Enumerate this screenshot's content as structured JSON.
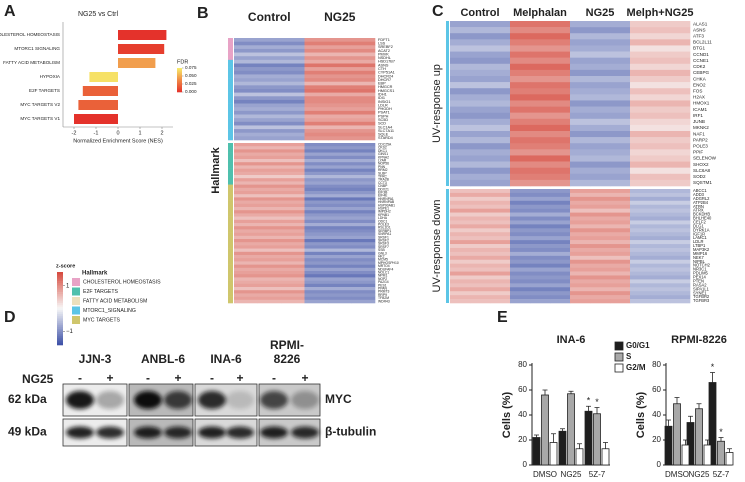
{
  "panel_labels": [
    "A",
    "B",
    "C",
    "D",
    "E"
  ],
  "chart_data": [
    {
      "type": "hbar",
      "title": "NG25 vs Ctrl",
      "x_label": "Normalized Enrichment Score (NES)",
      "categories": [
        "CHOLESTEROL HOMEOSTASIS",
        "MTORC1 SIGNALING",
        "FATTY ACID METABOLISM",
        "HYPOXIA",
        "E2F TARGETS",
        "MYC TARGETS V2",
        "MYC TARGETS V1"
      ],
      "values": [
        2.2,
        2.1,
        1.7,
        -1.3,
        -1.6,
        -1.8,
        -2.0
      ],
      "fdr": [
        0.0,
        0.005,
        0.045,
        0.07,
        0.02,
        0.02,
        0.0
      ],
      "xlim": [
        -2.5,
        2.5
      ],
      "xticks": [
        -2,
        -1,
        0,
        1,
        2
      ],
      "colorbar": {
        "title": "FDR",
        "clim": [
          0,
          0.075
        ],
        "colors": [
          "#e4322b",
          "#f08a45",
          "#f7ee6b"
        ],
        "ticks": [
          0.075,
          {
            "value": 0.05,
            "label": "0.050"
          },
          0.025,
          {
            "value": 0,
            "label": "0.000"
          }
        ]
      }
    },
    {
      "type": "bar",
      "title": "INA-6",
      "y_label": "Cells (%)",
      "categories": [
        "DMSO",
        "NG25",
        "5Z-7"
      ],
      "ylim": [
        0,
        80
      ],
      "yticks": [
        0,
        20,
        40,
        60,
        80
      ],
      "series": [
        {
          "name": "G0/G1",
          "color": "#1e1e1e",
          "values": [
            22,
            27,
            43
          ],
          "errors": [
            2,
            2,
            4
          ],
          "significance": [
            null,
            null,
            "*"
          ]
        },
        {
          "name": "S",
          "color": "#a8a8a8",
          "values": [
            56,
            57,
            41
          ],
          "errors": [
            4,
            2,
            5
          ],
          "significance": [
            null,
            null,
            "*"
          ]
        },
        {
          "name": "G2/M",
          "color": "#ffffff",
          "values": [
            18,
            13,
            13
          ],
          "errors": [
            7,
            4,
            5
          ],
          "significance": [
            null,
            null,
            null
          ]
        }
      ]
    },
    {
      "type": "bar",
      "title": "RPMI-8226",
      "y_label": "Cells (%)",
      "categories": [
        "DMSO",
        "NG25",
        "5Z-7"
      ],
      "ylim": [
        0,
        80
      ],
      "yticks": [
        0,
        20,
        40,
        60,
        80
      ],
      "series": [
        {
          "color": "#1e1e1e",
          "values": [
            31,
            34,
            66
          ],
          "errors": [
            5,
            5,
            8
          ],
          "significance": [
            null,
            null,
            "*"
          ]
        },
        {
          "color": "#a8a8a8",
          "values": [
            49,
            45,
            19
          ],
          "errors": [
            5,
            4,
            3
          ],
          "significance": [
            null,
            null,
            "*"
          ]
        },
        {
          "color": "#ffffff",
          "values": [
            16,
            16,
            10
          ],
          "errors": [
            4,
            4,
            3
          ],
          "significance": [
            null,
            null,
            null
          ]
        }
      ]
    }
  ],
  "heatmap_legend": {
    "title": "z-score",
    "zlim": [
      -1.6,
      1.6
    ],
    "ticks": [
      1,
      {
        "value": -1,
        "label": "−1"
      }
    ]
  },
  "heatmap_b": {
    "columns": [
      "Control",
      "NG25"
    ],
    "replicates": 3,
    "row_label": "Hallmark",
    "hallmarks": [
      {
        "name": "CHOLESTEROL HOMEOSTASIS",
        "color": "#e8a3c6"
      },
      {
        "name": "E2F TARGETS",
        "color": "#4fc0ad"
      },
      {
        "name": "FATTY ACID METABOLISM",
        "color": "#ece0bd"
      },
      {
        "name": "MTORC1_SIGNALING",
        "color": "#5cc5e6"
      },
      {
        "name": "MYC TARGETS",
        "color": "#cfc66c"
      }
    ],
    "blocks": [
      {
        "genes": [
          "FDFT1",
          "LSS",
          "SREBF2",
          "ACAT2",
          "PMVK",
          "NSDHL",
          "HSD17B7",
          "ASNS",
          "CTH",
          "CYP51A1",
          "DHCR24",
          "DHCR7",
          "EBP",
          "HMGCR",
          "HMGCS1",
          "IDH1",
          "IDI1",
          "INSIG1",
          "LDLR",
          "PHGDH",
          "PSAT1",
          "PSPH",
          "SC5D",
          "SCD",
          "SLC1A4",
          "SLC7A11",
          "SQLE",
          "STARD4"
        ],
        "hallmark": [
          0,
          0,
          0,
          0,
          0,
          0,
          3,
          3,
          3,
          3,
          3,
          3,
          3,
          3,
          3,
          3,
          3,
          3,
          3,
          3,
          3,
          3,
          3,
          3,
          3,
          3,
          3,
          3
        ],
        "values": [
          [
            -0.8,
            0.9
          ],
          [
            -1.0,
            1.1
          ],
          [
            -0.7,
            0.8
          ],
          [
            -0.9,
            1.0
          ],
          [
            -0.5,
            0.6
          ],
          [
            -0.8,
            0.9
          ],
          [
            -0.6,
            0.7
          ],
          [
            -1.1,
            1.2
          ],
          [
            -0.9,
            0.8
          ],
          [
            -1.0,
            1.1
          ],
          [
            -0.7,
            0.9
          ],
          [
            -0.8,
            1.0
          ],
          [
            -0.6,
            0.6
          ],
          [
            -0.9,
            1.1
          ],
          [
            -1.0,
            1.2
          ],
          [
            -0.5,
            0.7
          ],
          [
            -0.9,
            1.0
          ],
          [
            -1.1,
            1.0
          ],
          [
            -0.8,
            0.9
          ],
          [
            -0.7,
            0.8
          ],
          [
            -0.9,
            1.1
          ],
          [
            -0.6,
            0.7
          ],
          [
            -0.8,
            0.8
          ],
          [
            -1.0,
            1.1
          ],
          [
            -0.5,
            0.6
          ],
          [
            -0.9,
            0.9
          ],
          [
            -0.7,
            1.0
          ],
          [
            -0.8,
            0.9
          ]
        ]
      },
      {
        "genes": [
          "CDC25A",
          "CKS2",
          "DKC1",
          "GINS1",
          "KPNA2",
          "LYAR",
          "NOP56",
          "PNN",
          "RRM2",
          "SLBP",
          "TFRC",
          "TRA2B",
          "CCT3",
          "CNBP",
          "DDX21",
          "EIF3B",
          "EIF4E",
          "HNRNPA1",
          "HNRNPAB",
          "HSP90AB1",
          "HSPE1",
          "IMPDH2",
          "KPNB1",
          "LDHA",
          "ODC1",
          "POLE3",
          "RSL1D1",
          "SERBP1",
          "SNRPA1",
          "SRSF1",
          "SRSF2",
          "SRSF3",
          "SRSF7",
          "SSB",
          "GNL3",
          "HK2",
          "MCM5",
          "MPHOSPH10",
          "MRTO4",
          "NDUFAF4",
          "NOLC1",
          "NPM1",
          "NOP2",
          "PA2G4",
          "PES1",
          "PPAN",
          "PRMT3",
          "RRP9",
          "TFB2M",
          "WDR43"
        ],
        "hallmark": [
          1,
          1,
          1,
          1,
          1,
          1,
          1,
          1,
          1,
          1,
          1,
          1,
          1,
          4,
          4,
          4,
          4,
          4,
          4,
          4,
          4,
          4,
          4,
          4,
          4,
          4,
          4,
          4,
          4,
          4,
          4,
          4,
          4,
          4,
          4,
          4,
          4,
          4,
          4,
          4,
          4,
          4,
          4,
          4,
          4,
          4,
          4,
          4,
          4,
          4
        ],
        "values": [
          [
            0.8,
            -1.0
          ],
          [
            0.6,
            -0.9
          ],
          [
            0.9,
            -1.1
          ],
          [
            0.7,
            -0.8
          ],
          [
            0.8,
            -1.0
          ],
          [
            0.5,
            -0.7
          ],
          [
            0.9,
            -1.0
          ],
          [
            0.6,
            -0.8
          ],
          [
            0.8,
            -1.1
          ],
          [
            0.7,
            -0.9
          ],
          [
            0.4,
            -0.6
          ],
          [
            0.8,
            -0.9
          ],
          [
            0.6,
            -0.8
          ],
          [
            0.9,
            -1.0
          ],
          [
            0.7,
            -1.1
          ],
          [
            0.8,
            -0.9
          ],
          [
            0.5,
            -0.7
          ],
          [
            0.9,
            -1.2
          ],
          [
            0.7,
            -0.9
          ],
          [
            0.8,
            -1.0
          ],
          [
            0.6,
            -0.8
          ],
          [
            0.9,
            -1.1
          ],
          [
            0.7,
            -0.9
          ],
          [
            0.5,
            -0.8
          ],
          [
            0.8,
            -1.0
          ],
          [
            0.6,
            -0.7
          ],
          [
            0.9,
            -1.1
          ],
          [
            0.7,
            -1.0
          ],
          [
            0.8,
            -0.9
          ],
          [
            0.6,
            -0.8
          ],
          [
            0.9,
            -1.2
          ],
          [
            0.7,
            -0.9
          ],
          [
            0.8,
            -1.0
          ],
          [
            0.5,
            -0.6
          ],
          [
            0.9,
            -1.1
          ],
          [
            0.7,
            -0.8
          ],
          [
            0.8,
            -1.0
          ],
          [
            0.6,
            -0.9
          ],
          [
            0.9,
            -1.1
          ],
          [
            0.7,
            -0.8
          ],
          [
            0.8,
            -1.0
          ],
          [
            0.9,
            -1.2
          ],
          [
            0.6,
            -0.8
          ],
          [
            0.7,
            -0.9
          ],
          [
            0.8,
            -1.1
          ],
          [
            0.5,
            -0.7
          ],
          [
            0.9,
            -1.0
          ],
          [
            0.7,
            -0.9
          ],
          [
            0.8,
            -1.0
          ],
          [
            0.6,
            -0.8
          ]
        ]
      }
    ]
  },
  "heatmap_c": {
    "columns": [
      "Control",
      "Melphalan",
      "NG25",
      "Melph+NG25"
    ],
    "replicates": 3,
    "side_color": "#5cc5e6",
    "blocks": [
      {
        "name": "UV-response up",
        "genes": [
          "ALAS1",
          "ASNS",
          "ATF3",
          "BCL2L11",
          "BTG1",
          "CCND1",
          "CCNE1",
          "CDK2",
          "CEBPG",
          "CHKA",
          "ENO2",
          "FOS",
          "H2AX",
          "HMOX1",
          "ICAM1",
          "IRF1",
          "JUNB",
          "MKNK2",
          "NAF1",
          "PARP2",
          "POLE3",
          "PPIF",
          "SELENOW",
          "SHOX2",
          "SLC6A8",
          "SOD2",
          "SQSTM1"
        ],
        "values": [
          [
            -0.8,
            1.2,
            -0.7,
            0.4
          ],
          [
            -0.6,
            1.0,
            -0.9,
            0.5
          ],
          [
            -0.9,
            1.3,
            -0.6,
            0.3
          ],
          [
            -0.7,
            1.1,
            -0.8,
            0.6
          ],
          [
            -0.5,
            0.9,
            -0.7,
            0.2
          ],
          [
            -0.8,
            1.2,
            -0.5,
            0.4
          ],
          [
            -0.9,
            1.0,
            -0.8,
            0.5
          ],
          [
            -0.6,
            1.3,
            -0.7,
            0.3
          ],
          [
            -0.7,
            1.1,
            -0.9,
            0.6
          ],
          [
            -0.8,
            0.9,
            -0.6,
            0.4
          ],
          [
            -0.5,
            1.2,
            -0.8,
            0.2
          ],
          [
            -0.9,
            1.1,
            -0.7,
            0.5
          ],
          [
            -0.7,
            1.3,
            -0.6,
            0.3
          ],
          [
            -0.6,
            1.0,
            -0.9,
            0.6
          ],
          [
            -0.8,
            1.2,
            -0.7,
            0.4
          ],
          [
            -0.9,
            0.9,
            -0.8,
            0.5
          ],
          [
            -0.7,
            1.1,
            -0.5,
            0.3
          ],
          [
            -0.5,
            1.3,
            -0.7,
            0.2
          ],
          [
            -0.8,
            1.0,
            -0.9,
            0.6
          ],
          [
            -0.6,
            1.2,
            -0.6,
            0.4
          ],
          [
            -0.9,
            1.1,
            -0.8,
            0.5
          ],
          [
            -0.7,
            0.9,
            -0.7,
            0.3
          ],
          [
            -0.8,
            1.3,
            -0.6,
            0.4
          ],
          [
            -0.6,
            1.0,
            -0.9,
            0.6
          ],
          [
            -0.9,
            1.2,
            -0.7,
            0.2
          ],
          [
            -0.7,
            1.1,
            -0.8,
            0.5
          ],
          [
            -0.8,
            0.9,
            -0.6,
            0.4
          ]
        ]
      },
      {
        "name": "UV-response down",
        "genes": [
          "ABCC1",
          "ADD3",
          "ADGRL2",
          "ATP2B4",
          "ATRN",
          "ATRX",
          "BCKDHB",
          "BHLHE40",
          "CELF2",
          "DLG1",
          "DYRK1A",
          "IGF1R",
          "LAMC1",
          "LDLR",
          "LTBP1",
          "MAP3K2",
          "MMP16",
          "NEK7",
          "NIPBL",
          "NOTCH2",
          "NR3C1",
          "PDLIM5",
          "PEX14",
          "PTEN",
          "RASA2",
          "SIPA1L1",
          "SYNE1",
          "TGFBR2",
          "TGFBR3"
        ],
        "values": [
          [
            0.5,
            -0.9,
            0.8,
            -0.6
          ],
          [
            0.7,
            -1.0,
            0.6,
            -0.5
          ],
          [
            0.4,
            -0.8,
            0.9,
            -0.7
          ],
          [
            0.6,
            -1.1,
            0.7,
            -0.4
          ],
          [
            0.5,
            -0.9,
            0.8,
            -0.6
          ],
          [
            0.8,
            -1.0,
            0.5,
            -0.5
          ],
          [
            0.4,
            -0.7,
            0.9,
            -0.6
          ],
          [
            0.6,
            -1.0,
            0.7,
            -0.7
          ],
          [
            0.5,
            -0.8,
            0.8,
            -0.4
          ],
          [
            0.7,
            -1.1,
            0.6,
            -0.6
          ],
          [
            0.4,
            -0.9,
            0.9,
            -0.5
          ],
          [
            0.6,
            -1.0,
            0.7,
            -0.6
          ],
          [
            0.5,
            -0.8,
            0.8,
            -0.7
          ],
          [
            0.8,
            -1.1,
            0.6,
            -0.4
          ],
          [
            0.4,
            -0.9,
            0.9,
            -0.6
          ],
          [
            0.6,
            -1.0,
            0.7,
            -0.5
          ],
          [
            0.5,
            -0.7,
            0.8,
            -0.6
          ],
          [
            0.7,
            -1.0,
            0.5,
            -0.7
          ],
          [
            0.4,
            -0.9,
            0.9,
            -0.4
          ],
          [
            0.6,
            -1.1,
            0.7,
            -0.6
          ],
          [
            0.5,
            -0.8,
            0.8,
            -0.5
          ],
          [
            0.8,
            -1.0,
            0.6,
            -0.6
          ],
          [
            0.4,
            -0.9,
            0.9,
            -0.7
          ],
          [
            0.6,
            -1.0,
            0.7,
            -0.4
          ],
          [
            0.5,
            -0.8,
            0.8,
            -0.6
          ],
          [
            0.7,
            -1.1,
            0.6,
            -0.5
          ],
          [
            0.4,
            -0.9,
            0.9,
            -0.6
          ],
          [
            0.6,
            -1.0,
            0.7,
            -0.7
          ],
          [
            0.5,
            -0.8,
            0.8,
            -0.5
          ]
        ]
      }
    ]
  },
  "blot": {
    "cell_lines": [
      "JJN-3",
      "ANBL-6",
      "INA-6",
      "RPMI-8226"
    ],
    "treatment": "NG25",
    "conditions": [
      "-",
      "+"
    ],
    "markers": [
      "62 kDa",
      "49 kDa"
    ],
    "proteins": [
      "MYC",
      "β-tubulin"
    ]
  }
}
